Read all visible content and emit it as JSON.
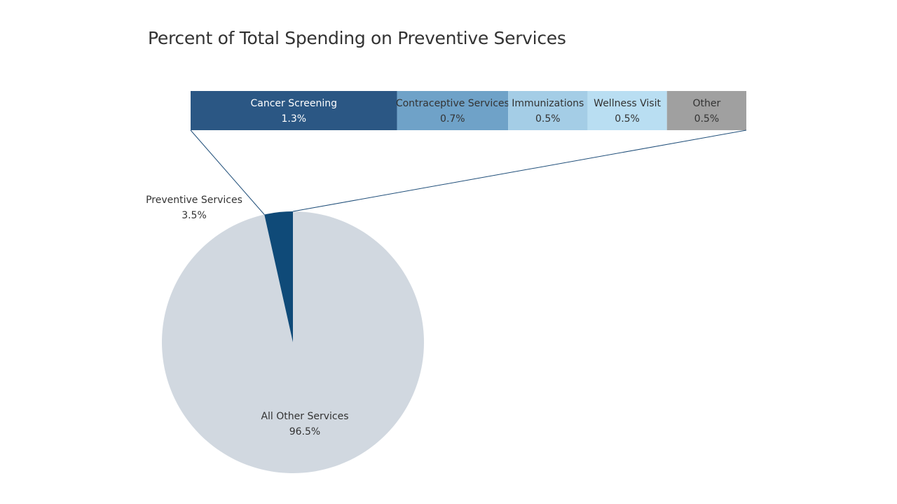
{
  "chart_data": [
    {
      "type": "pie",
      "title": "Percent of Total Spending on Preventive Services",
      "slices": [
        {
          "label": "Preventive Services",
          "value": 3.5,
          "display": "3.5%",
          "color": "#0f4a78"
        },
        {
          "label": "All Other Services",
          "value": 96.5,
          "display": "96.5%",
          "color": "#d1d8e0"
        }
      ]
    },
    {
      "type": "bar",
      "orientation": "horizontal-stacked",
      "breakdown_of": "Preventive Services",
      "series": [
        {
          "name": "Cancer Screening",
          "value": 1.3,
          "display": "1.3%",
          "color": "#2b5784",
          "text_color": "#ffffff"
        },
        {
          "name": "Contraceptive Services",
          "value": 0.7,
          "display": "0.7%",
          "color": "#6fa2c8",
          "text_color": "#333333"
        },
        {
          "name": "Immunizations",
          "value": 0.5,
          "display": "0.5%",
          "color": "#a4cde6",
          "text_color": "#333333"
        },
        {
          "name": "Wellness Visit",
          "value": 0.5,
          "display": "0.5%",
          "color": "#b9def2",
          "text_color": "#333333"
        },
        {
          "name": "Other",
          "value": 0.5,
          "display": "0.5%",
          "color": "#a0a0a0",
          "text_color": "#333333"
        }
      ]
    }
  ]
}
